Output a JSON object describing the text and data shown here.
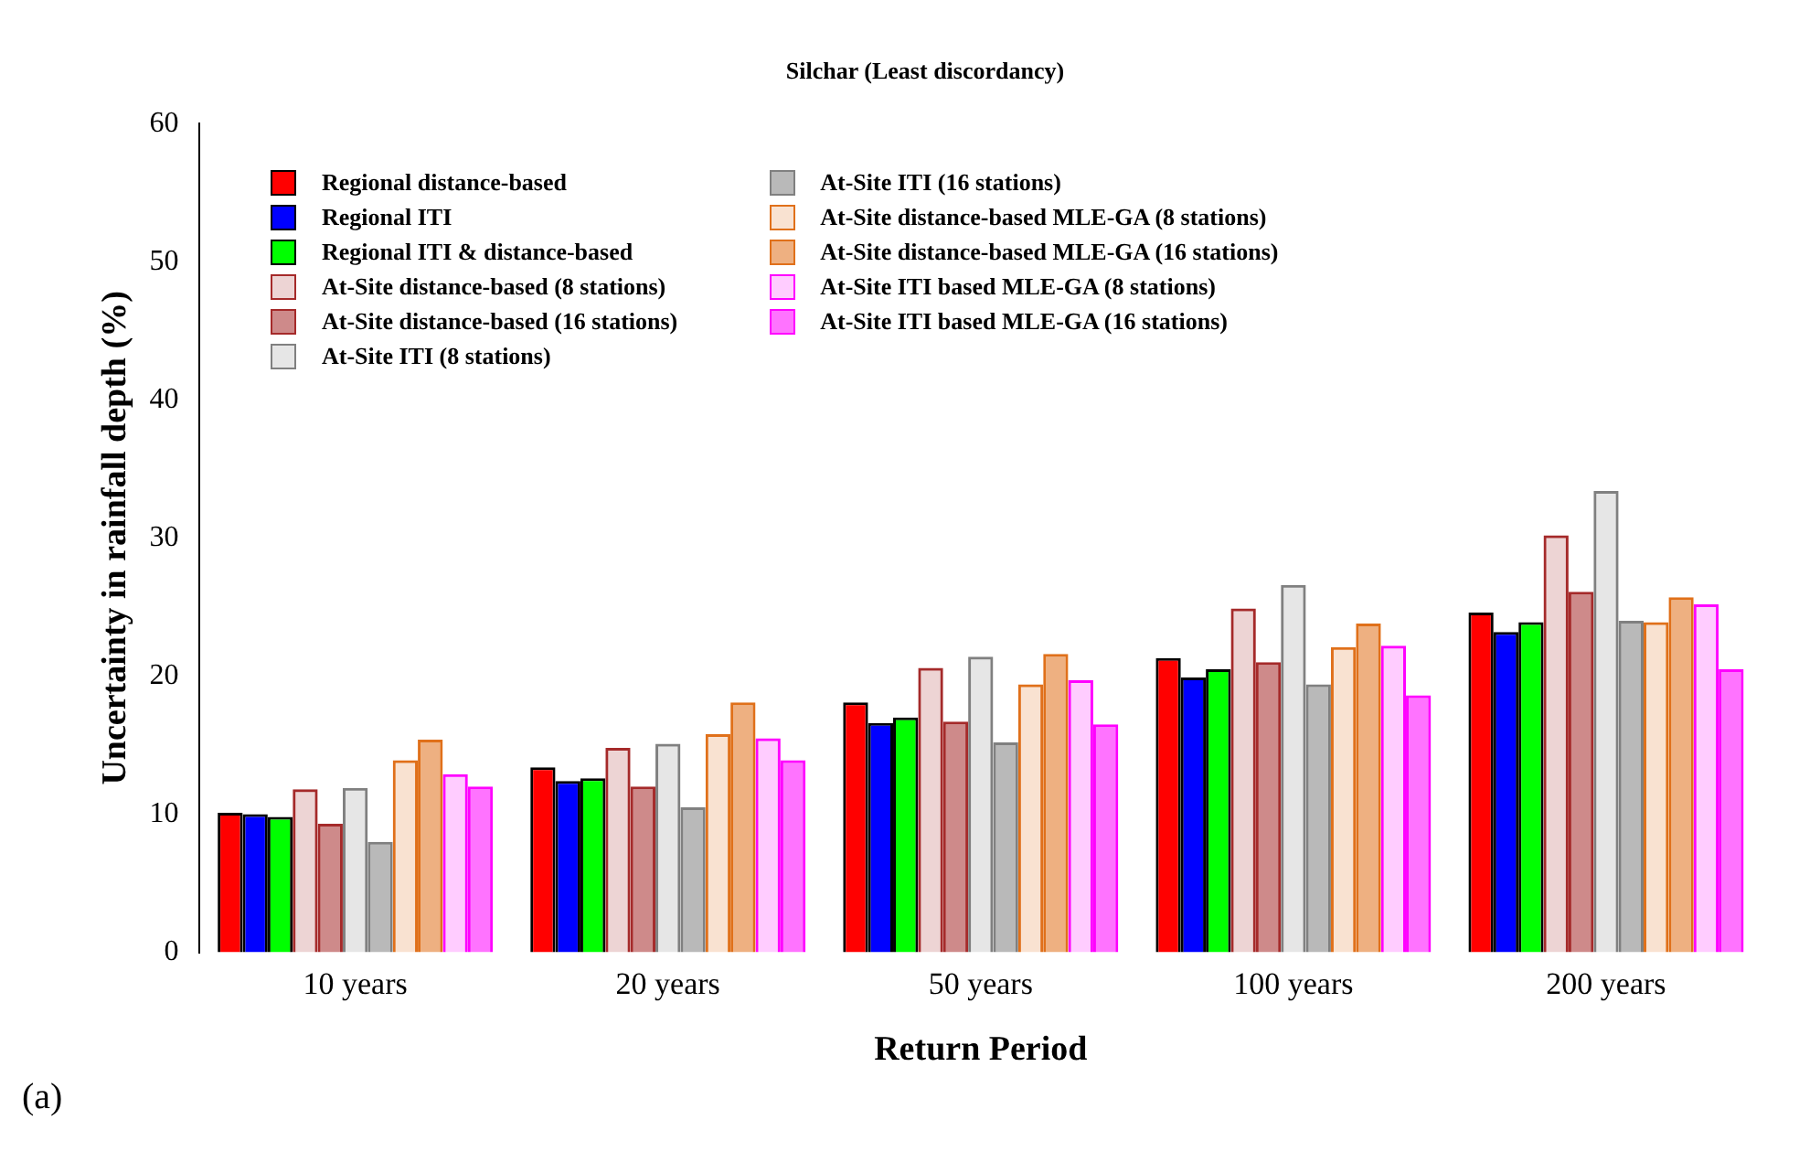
{
  "chart_data": {
    "type": "bar",
    "title": "Silchar (Least discordancy)",
    "xlabel": "Return Period",
    "ylabel": "Uncertainty in rainfall depth (%)",
    "annotations": [
      "(a)"
    ],
    "categories": [
      "10 years",
      "20 years",
      "50 years",
      "100 years",
      "200 years"
    ],
    "ylim": [
      0,
      60
    ],
    "yticks": [
      0,
      10,
      20,
      30,
      40,
      50,
      60
    ],
    "grid": false,
    "legend": "top left",
    "series": [
      {
        "name": "Regional distance-based",
        "color": "#ff0000",
        "values": [
          10.1,
          13.4,
          18.1,
          21.3,
          24.6
        ]
      },
      {
        "name": "Regional ITI",
        "color": "#0000ff",
        "values": [
          10.0,
          12.4,
          16.6,
          19.9,
          23.2
        ]
      },
      {
        "name": "Regional ITI & distance-based",
        "color": "#00ff00",
        "values": [
          9.8,
          12.6,
          17.0,
          20.5,
          23.9
        ]
      },
      {
        "name": "At-Site distance-based (8 stations)",
        "color": "#a52a2a",
        "values": [
          11.8,
          14.8,
          20.6,
          24.9,
          30.2
        ]
      },
      {
        "name": "At-Site distance-based (16 stations)",
        "color": "#a52a2a",
        "values": [
          9.3,
          12.0,
          16.7,
          21.0,
          26.1
        ]
      },
      {
        "name": "At-Site ITI (8 stations)",
        "color": "#808080",
        "values": [
          11.9,
          15.1,
          21.4,
          26.6,
          33.4
        ]
      },
      {
        "name": "At-Site ITI (16 stations)",
        "color": "#808080",
        "values": [
          8.0,
          10.5,
          15.2,
          19.4,
          24.0
        ]
      },
      {
        "name": "At-Site distance-based MLE-GA (8 stations)",
        "color": "#e0701a",
        "values": [
          13.9,
          15.8,
          19.4,
          22.1,
          23.9
        ]
      },
      {
        "name": "At-Site distance-based MLE-GA (16 stations)",
        "color": "#e0701a",
        "values": [
          15.4,
          18.1,
          21.6,
          23.8,
          25.7
        ]
      },
      {
        "name": "At-Site ITI based MLE-GA (8 stations)",
        "color": "#ff00ff",
        "values": [
          12.9,
          15.5,
          19.7,
          22.2,
          25.2
        ]
      },
      {
        "name": "At-Site ITI based MLE-GA (16 stations)",
        "color": "#ff00ff",
        "values": [
          12.0,
          13.9,
          16.5,
          18.6,
          20.5
        ]
      }
    ]
  }
}
